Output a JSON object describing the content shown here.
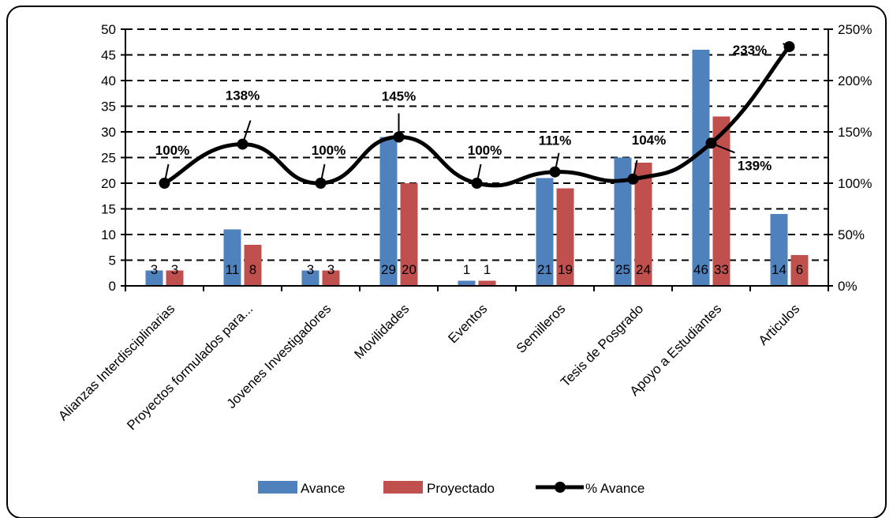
{
  "chart_data": {
    "type": "bar",
    "categories": [
      "Alianzas Interdisciplinarias",
      "Proyectos formulados para...",
      "Jovenes Investigadores",
      "Movilidades",
      "Eventos",
      "Semilleros",
      "Tesis de Posgrado",
      "Apoyo a Estudiantes",
      "Articulos"
    ],
    "series": [
      {
        "name": "Avance",
        "type": "bar",
        "axis": "left",
        "color": "#4F81BD",
        "values": [
          3,
          11,
          3,
          29,
          1,
          21,
          25,
          46,
          14
        ],
        "data_labels": [
          "3",
          "11",
          "3",
          "29",
          "1",
          "21",
          "25",
          "46",
          "14"
        ]
      },
      {
        "name": "Proyectado",
        "type": "bar",
        "axis": "left",
        "color": "#C0504D",
        "values": [
          3,
          8,
          3,
          20,
          1,
          19,
          24,
          33,
          6
        ],
        "data_labels": [
          "3",
          "8",
          "3",
          "20",
          "1",
          "19",
          "24",
          "33",
          "6"
        ]
      },
      {
        "name": "% Avance",
        "type": "line",
        "axis": "right",
        "color": "#000000",
        "values": [
          100,
          138,
          100,
          145,
          100,
          111,
          104,
          139,
          233
        ],
        "data_labels": [
          "100%",
          "138%",
          "100%",
          "145%",
          "100%",
          "111%",
          "104%",
          "139%",
          "233%"
        ]
      }
    ],
    "y_left": {
      "ylim": [
        0,
        50
      ],
      "ticks": [
        "0",
        "5",
        "10",
        "15",
        "20",
        "25",
        "30",
        "35",
        "40",
        "45",
        "50"
      ]
    },
    "y_right": {
      "ylim": [
        0,
        250
      ],
      "ticks": [
        "0%",
        "50%",
        "100%",
        "150%",
        "200%",
        "250%"
      ]
    },
    "grid": "horizontal dashed",
    "legend_position": "bottom",
    "colors": {
      "avance": "#4F81BD",
      "proyectado": "#C0504D",
      "line": "#000000"
    }
  }
}
